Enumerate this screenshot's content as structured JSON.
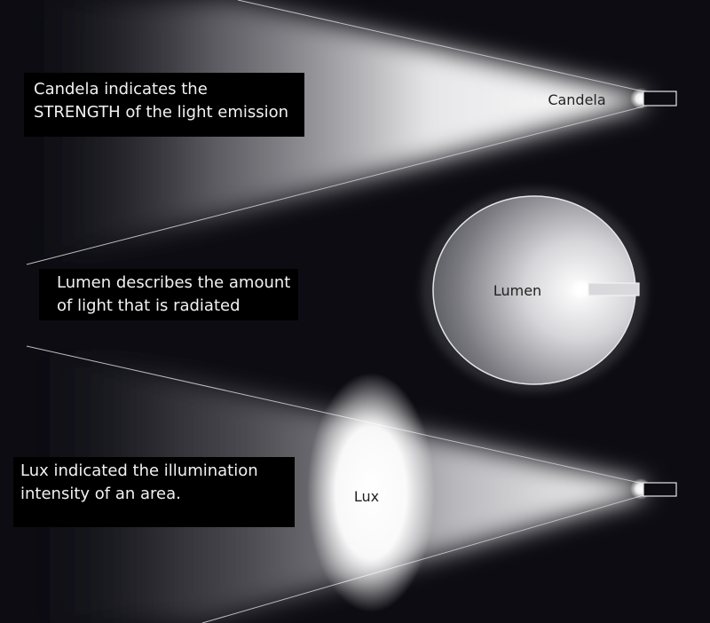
{
  "candela": {
    "label": "Candela",
    "caption_line1": "Candela indicates the",
    "caption_line2": "STRENGTH of the light emission"
  },
  "lumen": {
    "label": "Lumen",
    "caption_line1": "Lumen describes the amount",
    "caption_line2": "of light that is radiated"
  },
  "lux": {
    "label": "Lux",
    "caption_line1": "Lux indicated the illumination",
    "caption_line2": "intensity of an area."
  },
  "colors": {
    "background": "#0c0c12",
    "light": "#ffffff",
    "caption_bg": "#000000",
    "label_text": "#222222"
  }
}
